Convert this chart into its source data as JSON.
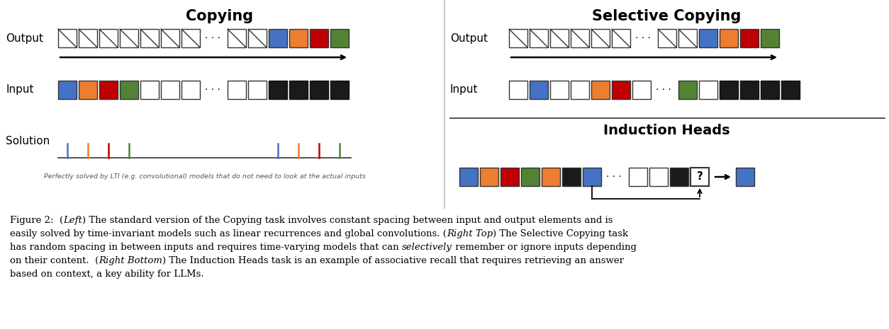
{
  "title_copying": "Copying",
  "title_selective": "Selective Copying",
  "title_induction": "Induction Heads",
  "colors": {
    "blue": "#4472C4",
    "orange": "#ED7D31",
    "red": "#C00000",
    "green": "#548235",
    "black": "#1a1a1a",
    "white": "#FFFFFF",
    "dgray": "#333333"
  },
  "fig_width": 12.54,
  "fig_height": 4.65,
  "dpi": 100,
  "caption_line1": "Figure 2:  (",
  "caption_line1_it": "Left",
  "caption_line1b": ") The standard version of the Copying task involves constant spacing between input and output elements and is",
  "caption_line2": "easily solved by time-invariant models such as linear recurrences and global convolutions. (",
  "caption_line2_it": "Right Top",
  "caption_line2b": ") The Selective Copying task",
  "caption_line3": "has random spacing in between inputs and requires time-varying models that can ",
  "caption_line3_it": "selectively",
  "caption_line3b": " remember or ignore inputs depending",
  "caption_line4": "on their content.  (",
  "caption_line4_it": "Right Bottom",
  "caption_line4b": ") The Induction Heads task is an example of associative recall that requires retrieving an answer",
  "caption_line5": "based on context, a key ability for LLMs.",
  "lti_caption": "Perfectly solved by LTI (e.g. convolutional) models that do not need to look at the actual inputs"
}
